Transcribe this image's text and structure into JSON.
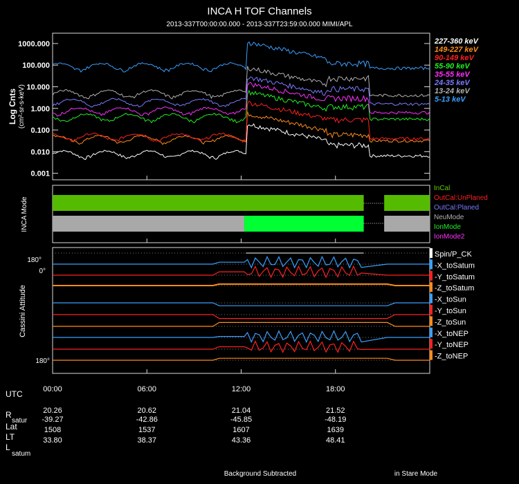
{
  "chart_data": {
    "type": "line",
    "title": "INCA H TOF Channels",
    "subtitle": "2013-337T00:00:00.000 - 2013-337T23:59:00.000 MIMI/APL",
    "ylabel": "Log Cnts",
    "ylabel_units": "(cm²-sr-s-keV)",
    "ylim": [
      0.0005,
      3000
    ],
    "yticks": [
      {
        "v": 1000,
        "label": "1000.000"
      },
      {
        "v": 100,
        "label": "100.000"
      },
      {
        "v": 10,
        "label": "10.000"
      },
      {
        "v": 1,
        "label": "1.000"
      },
      {
        "v": 0.1,
        "label": "0.100"
      },
      {
        "v": 0.01,
        "label": "0.010"
      },
      {
        "v": 0.001,
        "label": "0.001"
      }
    ],
    "xlim_hours": [
      0,
      24
    ],
    "series": [
      {
        "name": "227-360 keV",
        "color": "#ffffff",
        "quiet": 0.008,
        "enh": 0.2,
        "enh2": 0.02,
        "sparse": true
      },
      {
        "name": "149-227 keV",
        "color": "#ff8c1a",
        "quiet": 0.04,
        "enh": 0.6,
        "enh2": 0.06
      },
      {
        "name": "90-149 keV",
        "color": "#ff2020",
        "quiet": 0.05,
        "enh": 2,
        "enh2": 0.3
      },
      {
        "name": "55-90 keV",
        "color": "#22ee22",
        "quiet": 0.4,
        "enh": 6,
        "enh2": 1.2
      },
      {
        "name": "35-55 keV",
        "color": "#ff30ff",
        "quiet": 0.8,
        "enh": 15,
        "enh2": 3
      },
      {
        "name": "24-35 keV",
        "color": "#7a7aff",
        "quiet": 2,
        "enh": 30,
        "enh2": 8
      },
      {
        "name": "13-24 keV",
        "color": "#b0b0b0",
        "quiet": 5,
        "enh": 80,
        "enh2": 25
      },
      {
        "name": "5-13 keV",
        "color": "#3aa0ff",
        "quiet": 90,
        "enh": 1200,
        "enh2": 120
      }
    ],
    "mode_panel": {
      "ylabel": "INCA Mode",
      "legend": [
        {
          "label": "InCal",
          "color": "#66cc00"
        },
        {
          "label": "OutCal:UnPlaned",
          "color": "#ff2020"
        },
        {
          "label": "OutCal:Planed",
          "color": "#7a7aff"
        },
        {
          "label": "NeuMode",
          "color": "#b0b0b0"
        },
        {
          "label": "IonMode",
          "color": "#22ee22"
        },
        {
          "label": "IonMode2",
          "color": "#ff30ff"
        }
      ],
      "bars": [
        {
          "row": "cal",
          "start_h": 0,
          "end_h": 19.8,
          "color": "#55bb00"
        },
        {
          "row": "cal",
          "start_h": 21.1,
          "end_h": 24,
          "color": "#55bb00"
        },
        {
          "row": "mode",
          "start_h": 0,
          "end_h": 12.2,
          "color": "#a8a8a8"
        },
        {
          "row": "mode",
          "start_h": 12.2,
          "end_h": 19.8,
          "color": "#00ff33"
        },
        {
          "row": "mode",
          "start_h": 21.1,
          "end_h": 24,
          "color": "#a8a8a8"
        }
      ]
    },
    "attitude_panel": {
      "ylabel": "Cassini Attitude",
      "tick_top": [
        "180°",
        "0°"
      ],
      "tick_bottom": "180°",
      "legend": [
        {
          "label": "Spin/P_CK",
          "color": "#ffffff"
        },
        {
          "label": "-X_toSatum",
          "color": "#3aa0ff"
        },
        {
          "label": "-Y_toSatum",
          "color": "#ff2020"
        },
        {
          "label": "-Z_toSatum",
          "color": "#ff8c1a"
        },
        {
          "label": "-X_toSun",
          "color": "#3aa0ff"
        },
        {
          "label": "-Y_toSun",
          "color": "#ff2020"
        },
        {
          "label": "-Z_toSun",
          "color": "#ff8c1a"
        },
        {
          "label": "-X_toNEP",
          "color": "#3aa0ff"
        },
        {
          "label": "-Y_toNEP",
          "color": "#ff2020"
        },
        {
          "label": "-Z_toNEP",
          "color": "#ff8c1a"
        }
      ]
    },
    "time_axis": {
      "utc_label": "UTC",
      "ticks": [
        {
          "h": 0,
          "label": "00:00",
          "R": "20.26",
          "Lat": "-39.27",
          "LT": "1508",
          "L": "33.80"
        },
        {
          "h": 6,
          "label": "06:00",
          "R": "20.62",
          "Lat": "-42.86",
          "LT": "1537",
          "L": "38.37"
        },
        {
          "h": 12,
          "label": "12:00",
          "R": "21.04",
          "Lat": "-45.85",
          "LT": "1607",
          "L": "43.36"
        },
        {
          "h": 18,
          "label": "18:00",
          "R": "21.52",
          "Lat": "-48.19",
          "LT": "1639",
          "L": "48.41"
        }
      ],
      "row_labels": {
        "R": "R",
        "R_sub": "satur",
        "Lat": "Lat",
        "LT": "LT",
        "L": "L",
        "L_sub": "satum"
      }
    },
    "footer": {
      "left": "Background Subtracted",
      "right": "in Stare Mode"
    }
  }
}
